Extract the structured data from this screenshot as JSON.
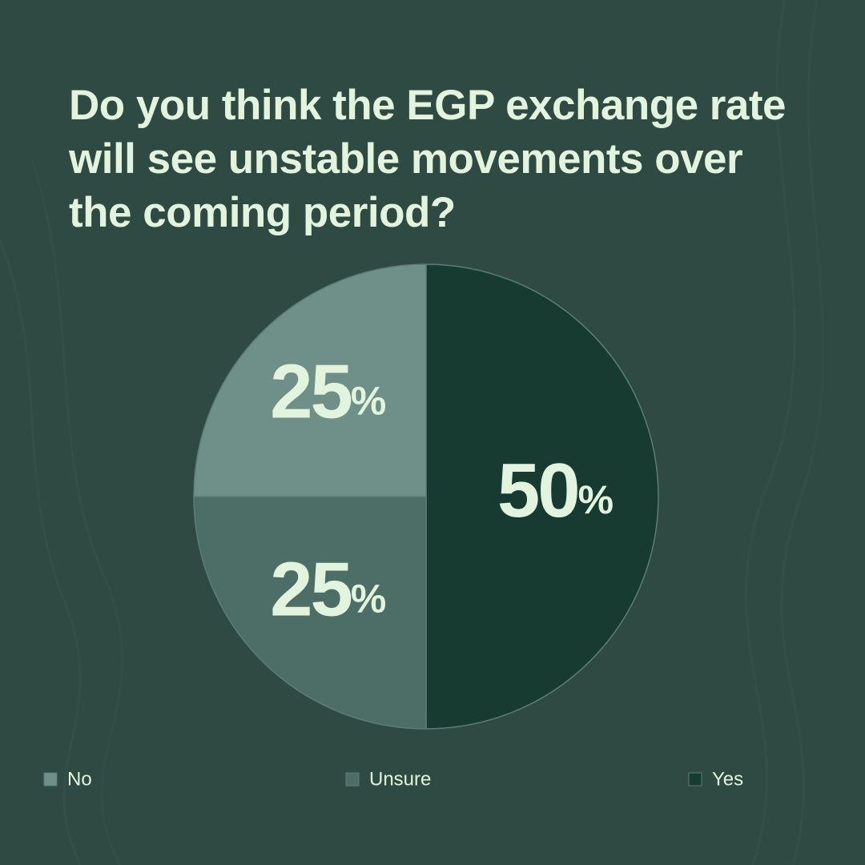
{
  "chart_data": {
    "type": "pie",
    "title": "Do you think the EGP exchange rate will see unstable movements over the coming period?",
    "categories": [
      "No",
      "Unsure",
      "Yes"
    ],
    "values": [
      25,
      25,
      50
    ],
    "value_labels": [
      "25%",
      "25%",
      "50%"
    ],
    "colors": [
      "#6f9088",
      "#4d6e67",
      "#173a31"
    ]
  }
}
